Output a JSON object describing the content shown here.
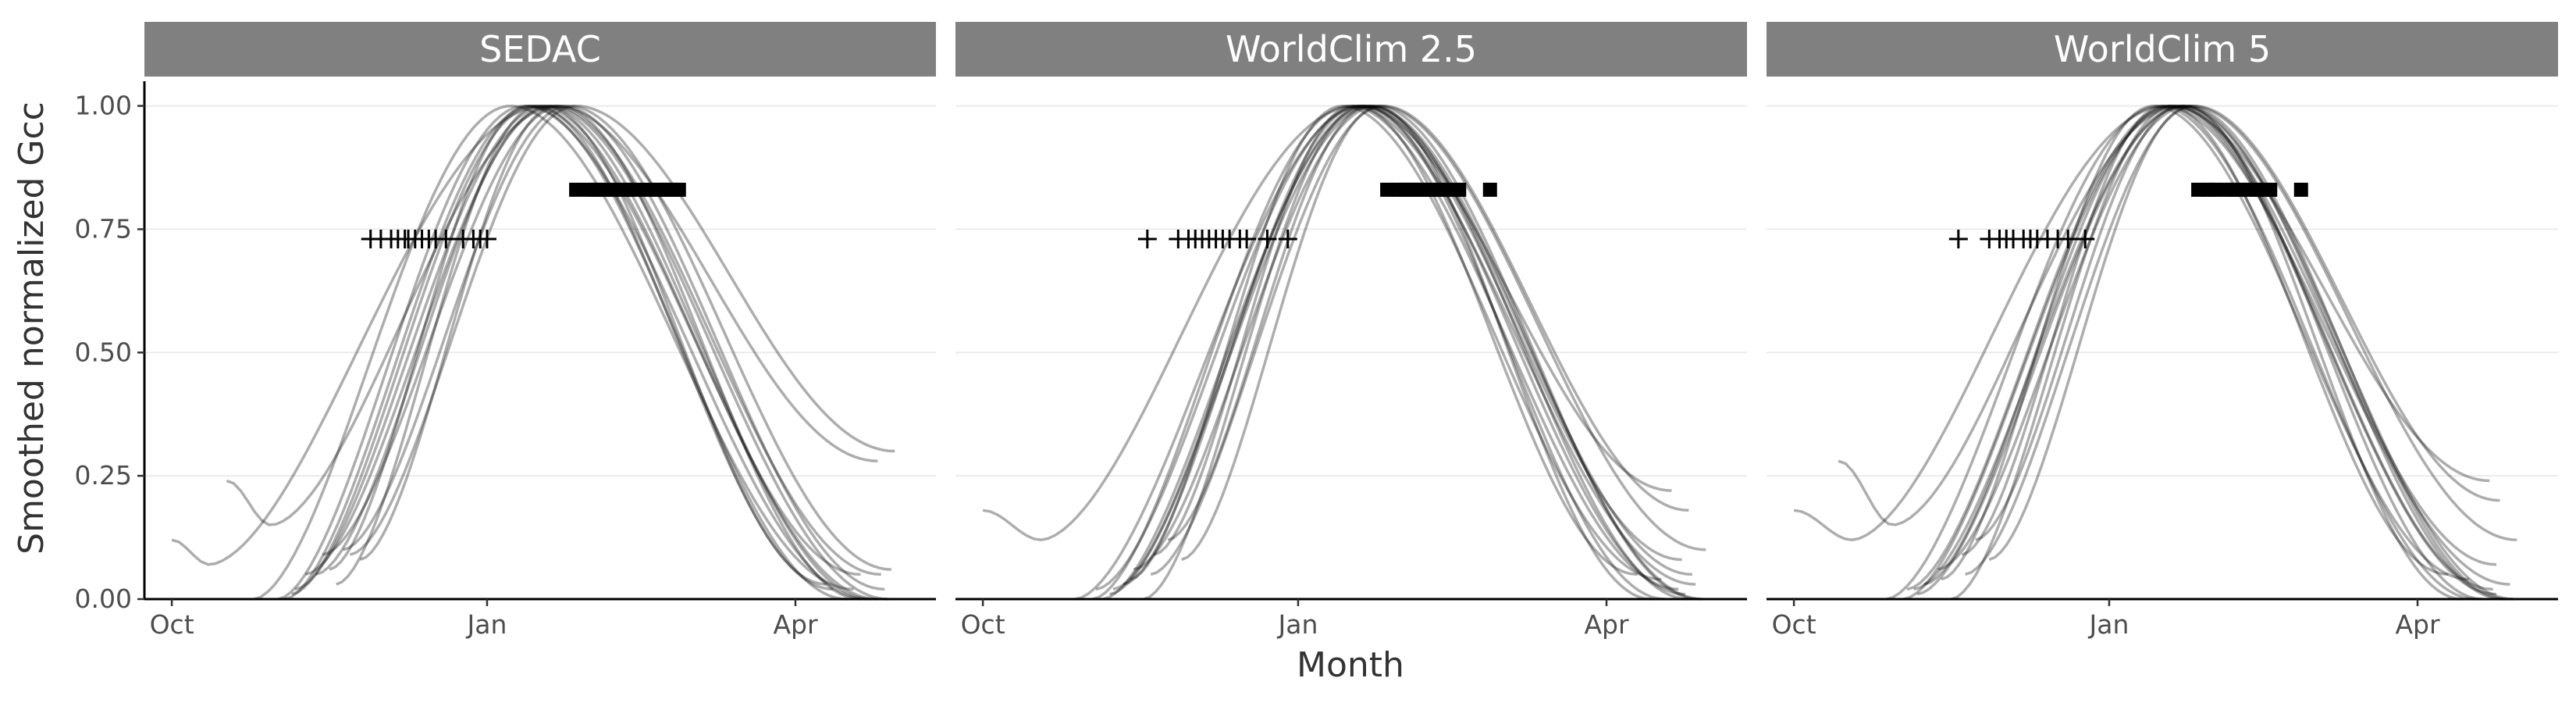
{
  "chart_data": {
    "type": "line",
    "xlabel": "Month",
    "ylabel": "Smoothed normalized Gcc",
    "ylim": [
      0,
      1.05
    ],
    "y_ticks": [
      0,
      0.25,
      0.5,
      0.75,
      1.0
    ],
    "y_tick_labels": [
      "0.00",
      "0.25",
      "0.50",
      "0.75",
      "1.00"
    ],
    "x_ticks": [
      {
        "date": "2000-10-01",
        "label": "Oct"
      },
      {
        "date": "2001-01-01",
        "label": "Jan"
      },
      {
        "date": "2001-04-01",
        "label": "Apr"
      }
    ],
    "xlim": [
      "2000-09-23",
      "2001-05-12"
    ],
    "grid": "horizontal",
    "line_color": "#000000",
    "line_opacity": 0.32,
    "panels": [
      {
        "title": "SEDAC",
        "greenup_points": {
          "y": 0.73,
          "dates": [
            "2000-11-28",
            "2000-12-01",
            "2000-12-04",
            "2000-12-06",
            "2000-12-08",
            "2000-12-09",
            "2000-12-11",
            "2000-12-13",
            "2000-12-15",
            "2000-12-17",
            "2000-12-20",
            "2000-12-25",
            "2000-12-28",
            "2000-12-30",
            "2001-01-01"
          ]
        },
        "senescence_points": {
          "y": 0.83,
          "dates": [
            "2001-01-27",
            "2001-01-31",
            "2001-02-02",
            "2001-02-04",
            "2001-02-07",
            "2001-02-09",
            "2001-02-11",
            "2001-02-13",
            "2001-02-17",
            "2001-02-20",
            "2001-02-22",
            "2001-02-24",
            "2001-02-26"
          ]
        },
        "curves": [
          {
            "start": "2000-10-01",
            "peak": "2001-01-18",
            "end": "2001-04-10",
            "min_start": 0.12,
            "min_end": 0.03,
            "dip_date": "2000-10-12",
            "dip_value": 0.07
          },
          {
            "start": "2000-10-17",
            "peak": "2001-01-22",
            "end": "2001-04-20",
            "min_start": 0.24,
            "min_end": 0.0,
            "dip_date": "2000-10-30",
            "dip_value": 0.15
          },
          {
            "start": "2000-10-25",
            "peak": "2001-01-08",
            "end": "2001-04-18",
            "min_start": 0.0,
            "min_end": 0.02
          },
          {
            "start": "2000-11-01",
            "peak": "2001-01-12",
            "end": "2001-04-22",
            "min_start": 0.0,
            "min_end": 0.0
          },
          {
            "start": "2000-11-03",
            "peak": "2001-01-14",
            "end": "2001-04-25",
            "min_start": 0.0,
            "min_end": 0.0
          },
          {
            "start": "2000-11-06",
            "peak": "2001-01-18",
            "end": "2001-04-23",
            "min_start": 0.02,
            "min_end": 0.0
          },
          {
            "start": "2000-11-09",
            "peak": "2001-01-20",
            "end": "2001-04-26",
            "min_start": 0.05,
            "min_end": 0.05
          },
          {
            "start": "2000-11-14",
            "peak": "2001-01-23",
            "end": "2001-04-27",
            "min_start": 0.09,
            "min_end": 0.02
          },
          {
            "start": "2000-11-18",
            "peak": "2001-01-16",
            "end": "2001-04-20",
            "min_start": 0.03,
            "min_end": 0.05
          },
          {
            "start": "2000-11-25",
            "peak": "2001-01-21",
            "end": "2001-04-25",
            "min_start": 0.08,
            "min_end": 0.28
          },
          {
            "start": "2000-11-12",
            "peak": "2001-01-19",
            "end": "2001-04-28",
            "min_start": 0.05,
            "min_end": 0.0
          },
          {
            "start": "2000-11-20",
            "peak": "2001-01-25",
            "end": "2001-04-29",
            "min_start": 0.1,
            "min_end": 0.06
          },
          {
            "start": "2000-11-05",
            "peak": "2001-01-15",
            "end": "2001-04-12",
            "min_start": 0.01,
            "min_end": 0.02
          },
          {
            "start": "2000-11-16",
            "peak": "2001-01-13",
            "end": "2001-04-16",
            "min_start": 0.06,
            "min_end": 0.0
          },
          {
            "start": "2000-11-22",
            "peak": "2001-01-27",
            "end": "2001-04-30",
            "min_start": 0.09,
            "min_end": 0.3
          }
        ]
      },
      {
        "title": "WorldClim 2.5",
        "greenup_points": {
          "y": 0.73,
          "dates": [
            "2000-11-18",
            "2000-11-27",
            "2000-11-30",
            "2000-12-02",
            "2000-12-04",
            "2000-12-06",
            "2000-12-08",
            "2000-12-10",
            "2000-12-12",
            "2000-12-15",
            "2000-12-17",
            "2000-12-23",
            "2000-12-29"
          ]
        },
        "senescence_points": {
          "y": 0.83,
          "dates": [
            "2001-01-27",
            "2001-01-30",
            "2001-02-01",
            "2001-02-03",
            "2001-02-05",
            "2001-02-07",
            "2001-02-09",
            "2001-02-11",
            "2001-02-13",
            "2001-02-15",
            "2001-02-17",
            "2001-02-26"
          ]
        },
        "curves": [
          {
            "start": "2000-10-01",
            "peak": "2001-01-18",
            "end": "2001-04-10",
            "min_start": 0.18,
            "min_end": 0.05,
            "dip_date": "2000-10-18",
            "dip_value": 0.12
          },
          {
            "start": "2000-10-28",
            "peak": "2001-01-20",
            "end": "2001-04-18",
            "min_start": 0.0,
            "min_end": 0.0
          },
          {
            "start": "2000-11-02",
            "peak": "2001-01-16",
            "end": "2001-04-22",
            "min_start": 0.0,
            "min_end": 0.02
          },
          {
            "start": "2000-11-05",
            "peak": "2001-01-22",
            "end": "2001-04-25",
            "min_start": 0.0,
            "min_end": 0.0
          },
          {
            "start": "2000-11-08",
            "peak": "2001-01-21",
            "end": "2001-04-26",
            "min_start": 0.02,
            "min_end": 0.05
          },
          {
            "start": "2000-11-11",
            "peak": "2001-01-19",
            "end": "2001-04-20",
            "min_start": 0.03,
            "min_end": 0.22
          },
          {
            "start": "2000-11-14",
            "peak": "2001-01-24",
            "end": "2001-04-28",
            "min_start": 0.06,
            "min_end": 0.0
          },
          {
            "start": "2000-11-17",
            "peak": "2001-01-20",
            "end": "2001-04-23",
            "min_start": 0.0,
            "min_end": 0.08
          },
          {
            "start": "2000-11-20",
            "peak": "2001-01-17",
            "end": "2001-04-27",
            "min_start": 0.09,
            "min_end": 0.03
          },
          {
            "start": "2000-11-24",
            "peak": "2001-01-22",
            "end": "2001-04-29",
            "min_start": 0.12,
            "min_end": 0.0
          },
          {
            "start": "2000-11-07",
            "peak": "2001-01-23",
            "end": "2001-04-14",
            "min_start": 0.01,
            "min_end": 0.0
          },
          {
            "start": "2000-11-13",
            "peak": "2001-01-14",
            "end": "2001-04-17",
            "min_start": 0.04,
            "min_end": 0.04
          },
          {
            "start": "2000-11-28",
            "peak": "2001-01-25",
            "end": "2001-04-30",
            "min_start": 0.08,
            "min_end": 0.1
          },
          {
            "start": "2000-11-03",
            "peak": "2001-01-19",
            "end": "2001-04-24",
            "min_start": 0.02,
            "min_end": 0.01
          },
          {
            "start": "2000-11-19",
            "peak": "2001-01-26",
            "end": "2001-04-25",
            "min_start": 0.05,
            "min_end": 0.18
          }
        ]
      },
      {
        "title": "WorldClim 5",
        "greenup_points": {
          "y": 0.73,
          "dates": [
            "2000-11-18",
            "2000-11-27",
            "2000-11-30",
            "2000-12-02",
            "2000-12-04",
            "2000-12-07",
            "2000-12-09",
            "2000-12-11",
            "2000-12-14",
            "2000-12-17",
            "2000-12-20",
            "2000-12-25"
          ]
        },
        "senescence_points": {
          "y": 0.83,
          "dates": [
            "2001-01-27",
            "2001-01-30",
            "2001-02-01",
            "2001-02-04",
            "2001-02-06",
            "2001-02-08",
            "2001-02-11",
            "2001-02-13",
            "2001-02-15",
            "2001-02-17",
            "2001-02-26"
          ]
        },
        "curves": [
          {
            "start": "2000-10-01",
            "peak": "2001-01-18",
            "end": "2001-04-10",
            "min_start": 0.18,
            "min_end": 0.05,
            "dip_date": "2000-10-18",
            "dip_value": 0.12
          },
          {
            "start": "2000-10-14",
            "peak": "2001-01-22",
            "end": "2001-04-20",
            "min_start": 0.28,
            "min_end": 0.0,
            "dip_date": "2000-10-30",
            "dip_value": 0.15
          },
          {
            "start": "2000-10-28",
            "peak": "2001-01-16",
            "end": "2001-04-18",
            "min_start": 0.0,
            "min_end": 0.0
          },
          {
            "start": "2000-11-02",
            "peak": "2001-01-20",
            "end": "2001-04-23",
            "min_start": 0.0,
            "min_end": 0.02
          },
          {
            "start": "2000-11-05",
            "peak": "2001-01-23",
            "end": "2001-04-26",
            "min_start": 0.02,
            "min_end": 0.0
          },
          {
            "start": "2000-11-08",
            "peak": "2001-01-19",
            "end": "2001-04-22",
            "min_start": 0.03,
            "min_end": 0.24
          },
          {
            "start": "2000-11-12",
            "peak": "2001-01-24",
            "end": "2001-04-27",
            "min_start": 0.06,
            "min_end": 0.0
          },
          {
            "start": "2000-11-16",
            "peak": "2001-01-20",
            "end": "2001-04-24",
            "min_start": 0.0,
            "min_end": 0.07
          },
          {
            "start": "2000-11-19",
            "peak": "2001-01-17",
            "end": "2001-04-28",
            "min_start": 0.09,
            "min_end": 0.03
          },
          {
            "start": "2000-11-23",
            "peak": "2001-01-22",
            "end": "2001-04-29",
            "min_start": 0.12,
            "min_end": 0.0
          },
          {
            "start": "2000-11-06",
            "peak": "2001-01-23",
            "end": "2001-04-14",
            "min_start": 0.01,
            "min_end": 0.0
          },
          {
            "start": "2000-11-13",
            "peak": "2001-01-14",
            "end": "2001-04-16",
            "min_start": 0.04,
            "min_end": 0.04
          },
          {
            "start": "2000-11-27",
            "peak": "2001-01-25",
            "end": "2001-04-30",
            "min_start": 0.08,
            "min_end": 0.12
          },
          {
            "start": "2000-11-03",
            "peak": "2001-01-19",
            "end": "2001-04-24",
            "min_start": 0.02,
            "min_end": 0.01
          },
          {
            "start": "2000-11-20",
            "peak": "2001-01-26",
            "end": "2001-04-25",
            "min_start": 0.05,
            "min_end": 0.2
          }
        ]
      }
    ]
  }
}
